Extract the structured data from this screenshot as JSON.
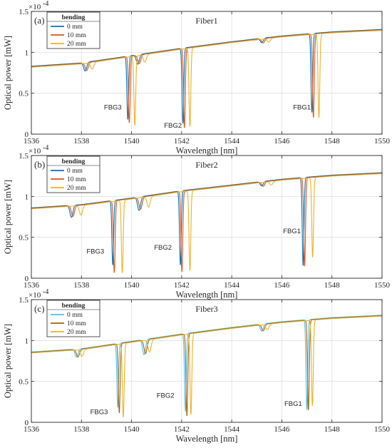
{
  "chart_data": [
    {
      "type": "line",
      "panel_label": "(a)",
      "title": "Fiber1",
      "xlabel": "Wavelength [nm]",
      "ylabel": "Optical power [mW]",
      "y_scale_label": "×10",
      "y_scale_exp": "-4",
      "xlim": [
        1536,
        1550
      ],
      "ylim": [
        0,
        1.5
      ],
      "x_ticks": [
        "1536",
        "1538",
        "1540",
        "1542",
        "1544",
        "1546",
        "1548",
        "1550"
      ],
      "y_ticks": [
        "0",
        "0.5",
        "1",
        "1.5"
      ],
      "grid": true,
      "legend": {
        "title": "bending",
        "placement": "top-left"
      },
      "series": [
        {
          "name": "0 mm",
          "color": "#0072BD",
          "shift": 0.0,
          "dips": [
            {
              "x": 1538.15,
              "depth": 0.13
            },
            {
              "x": 1539.85,
              "depth": 0.88
            },
            {
              "x": 1540.25,
              "depth": 0.13
            },
            {
              "x": 1542.05,
              "depth": 0.95
            },
            {
              "x": 1545.2,
              "depth": 0.05
            },
            {
              "x": 1547.2,
              "depth": 0.85
            }
          ]
        },
        {
          "name": "10 mm",
          "color": "#D95319",
          "shift": 0.06,
          "dips": [
            {
              "x": 1538.15,
              "depth": 0.12
            },
            {
              "x": 1539.85,
              "depth": 0.92
            },
            {
              "x": 1540.25,
              "depth": 0.12
            },
            {
              "x": 1542.05,
              "depth": 1.0
            },
            {
              "x": 1545.2,
              "depth": 0.05
            },
            {
              "x": 1547.2,
              "depth": 0.9
            }
          ]
        },
        {
          "name": "20 mm",
          "color": "#EDB120",
          "shift": 0.28,
          "dips": [
            {
              "x": 1538.15,
              "depth": 0.1
            },
            {
              "x": 1539.85,
              "depth": 0.95
            },
            {
              "x": 1540.25,
              "depth": 0.1
            },
            {
              "x": 1542.05,
              "depth": 0.98
            },
            {
              "x": 1545.2,
              "depth": 0.04
            },
            {
              "x": 1547.2,
              "depth": 0.9
            }
          ]
        }
      ],
      "baseline": [
        [
          1536,
          0.83
        ],
        [
          1538,
          0.87
        ],
        [
          1540,
          0.96
        ],
        [
          1542,
          1.05
        ],
        [
          1544,
          1.13
        ],
        [
          1546,
          1.2
        ],
        [
          1548,
          1.25
        ],
        [
          1550,
          1.28
        ]
      ],
      "annotations": [
        {
          "text": "FBG3",
          "x": 1538.9,
          "y": 0.3
        },
        {
          "text": "FBG2",
          "x": 1541.3,
          "y": 0.08
        },
        {
          "text": "FBG1",
          "x": 1546.45,
          "y": 0.3
        }
      ]
    },
    {
      "type": "line",
      "panel_label": "(b)",
      "title": "Fiber2",
      "xlabel": "Wavelength [nm]",
      "ylabel": "Optical power [mW]",
      "y_scale_label": "×10",
      "y_scale_exp": "-4",
      "xlim": [
        1536,
        1550
      ],
      "ylim": [
        0,
        1.5
      ],
      "x_ticks": [
        "1536",
        "1538",
        "1540",
        "1542",
        "1544",
        "1546",
        "1548",
        "1550"
      ],
      "y_ticks": [
        "0",
        "0.5",
        "1",
        "1.5"
      ],
      "grid": true,
      "legend": {
        "title": "bending",
        "placement": "top-left"
      },
      "series": [
        {
          "name": "0 mm",
          "color": "#0072BD",
          "shift": 0.0,
          "dips": [
            {
              "x": 1537.6,
              "depth": 0.18
            },
            {
              "x": 1539.25,
              "depth": 0.9
            },
            {
              "x": 1540.3,
              "depth": 0.18
            },
            {
              "x": 1541.95,
              "depth": 0.92
            },
            {
              "x": 1545.2,
              "depth": 0.05
            },
            {
              "x": 1546.85,
              "depth": 0.95
            }
          ]
        },
        {
          "name": "10 mm",
          "color": "#D95319",
          "shift": 0.06,
          "dips": [
            {
              "x": 1537.6,
              "depth": 0.16
            },
            {
              "x": 1539.25,
              "depth": 1.0
            },
            {
              "x": 1540.3,
              "depth": 0.16
            },
            {
              "x": 1541.95,
              "depth": 1.0
            },
            {
              "x": 1545.2,
              "depth": 0.05
            },
            {
              "x": 1546.85,
              "depth": 0.95
            }
          ]
        },
        {
          "name": "20 mm",
          "color": "#EDB120",
          "shift": 0.38,
          "dips": [
            {
              "x": 1537.6,
              "depth": 0.14
            },
            {
              "x": 1539.25,
              "depth": 1.0
            },
            {
              "x": 1540.3,
              "depth": 0.14
            },
            {
              "x": 1541.95,
              "depth": 0.98
            },
            {
              "x": 1545.2,
              "depth": 0.04
            },
            {
              "x": 1546.85,
              "depth": 0.85
            }
          ]
        }
      ],
      "baseline": [
        [
          1536,
          0.86
        ],
        [
          1538,
          0.9
        ],
        [
          1540,
          0.98
        ],
        [
          1542,
          1.07
        ],
        [
          1544,
          1.14
        ],
        [
          1546,
          1.21
        ],
        [
          1548,
          1.26
        ],
        [
          1550,
          1.29
        ]
      ],
      "annotations": [
        {
          "text": "FBG3",
          "x": 1538.2,
          "y": 0.3
        },
        {
          "text": "FBG2",
          "x": 1540.9,
          "y": 0.35
        },
        {
          "text": "FBG1",
          "x": 1546.05,
          "y": 0.55
        }
      ]
    },
    {
      "type": "line",
      "panel_label": "(c)",
      "title": "Fiber3",
      "xlabel": "Wavelength [nm]",
      "ylabel": "Optical power [mW]",
      "y_scale_label": "×10",
      "y_scale_exp": "-4",
      "xlim": [
        1536,
        1550
      ],
      "ylim": [
        0,
        1.5
      ],
      "x_ticks": [
        "1536",
        "1538",
        "1540",
        "1542",
        "1544",
        "1546",
        "1548",
        "1550"
      ],
      "y_ticks": [
        "0",
        "0.5",
        "1",
        "1.5"
      ],
      "grid": true,
      "legend": {
        "title": "bending",
        "placement": "top-left"
      },
      "series": [
        {
          "name": "0 mm",
          "color": "#4DBEEE",
          "shift": 0.0,
          "dips": [
            {
              "x": 1537.8,
              "depth": 0.12
            },
            {
              "x": 1539.45,
              "depth": 0.88
            },
            {
              "x": 1540.5,
              "depth": 0.2
            },
            {
              "x": 1542.15,
              "depth": 0.95
            },
            {
              "x": 1545.2,
              "depth": 0.08
            },
            {
              "x": 1547.0,
              "depth": 0.95
            }
          ]
        },
        {
          "name": "10 mm",
          "color": "#A2620B",
          "shift": 0.06,
          "dips": [
            {
              "x": 1537.8,
              "depth": 0.11
            },
            {
              "x": 1539.45,
              "depth": 0.95
            },
            {
              "x": 1540.5,
              "depth": 0.18
            },
            {
              "x": 1542.15,
              "depth": 1.0
            },
            {
              "x": 1545.2,
              "depth": 0.07
            },
            {
              "x": 1547.0,
              "depth": 0.95
            }
          ]
        },
        {
          "name": "20 mm",
          "color": "#EDB120",
          "shift": 0.22,
          "dips": [
            {
              "x": 1537.8,
              "depth": 0.1
            },
            {
              "x": 1539.45,
              "depth": 1.0
            },
            {
              "x": 1540.5,
              "depth": 0.16
            },
            {
              "x": 1542.15,
              "depth": 0.98
            },
            {
              "x": 1545.2,
              "depth": 0.06
            },
            {
              "x": 1547.0,
              "depth": 0.9
            }
          ]
        }
      ],
      "baseline": [
        [
          1536,
          0.86
        ],
        [
          1538,
          0.9
        ],
        [
          1540,
          0.99
        ],
        [
          1542,
          1.08
        ],
        [
          1544,
          1.16
        ],
        [
          1546,
          1.23
        ],
        [
          1548,
          1.28
        ],
        [
          1550,
          1.31
        ]
      ],
      "annotations": [
        {
          "text": "FBG3",
          "x": 1538.35,
          "y": 0.1
        },
        {
          "text": "FBG2",
          "x": 1541.0,
          "y": 0.3
        },
        {
          "text": "FBG1",
          "x": 1546.1,
          "y": 0.2
        }
      ]
    }
  ]
}
